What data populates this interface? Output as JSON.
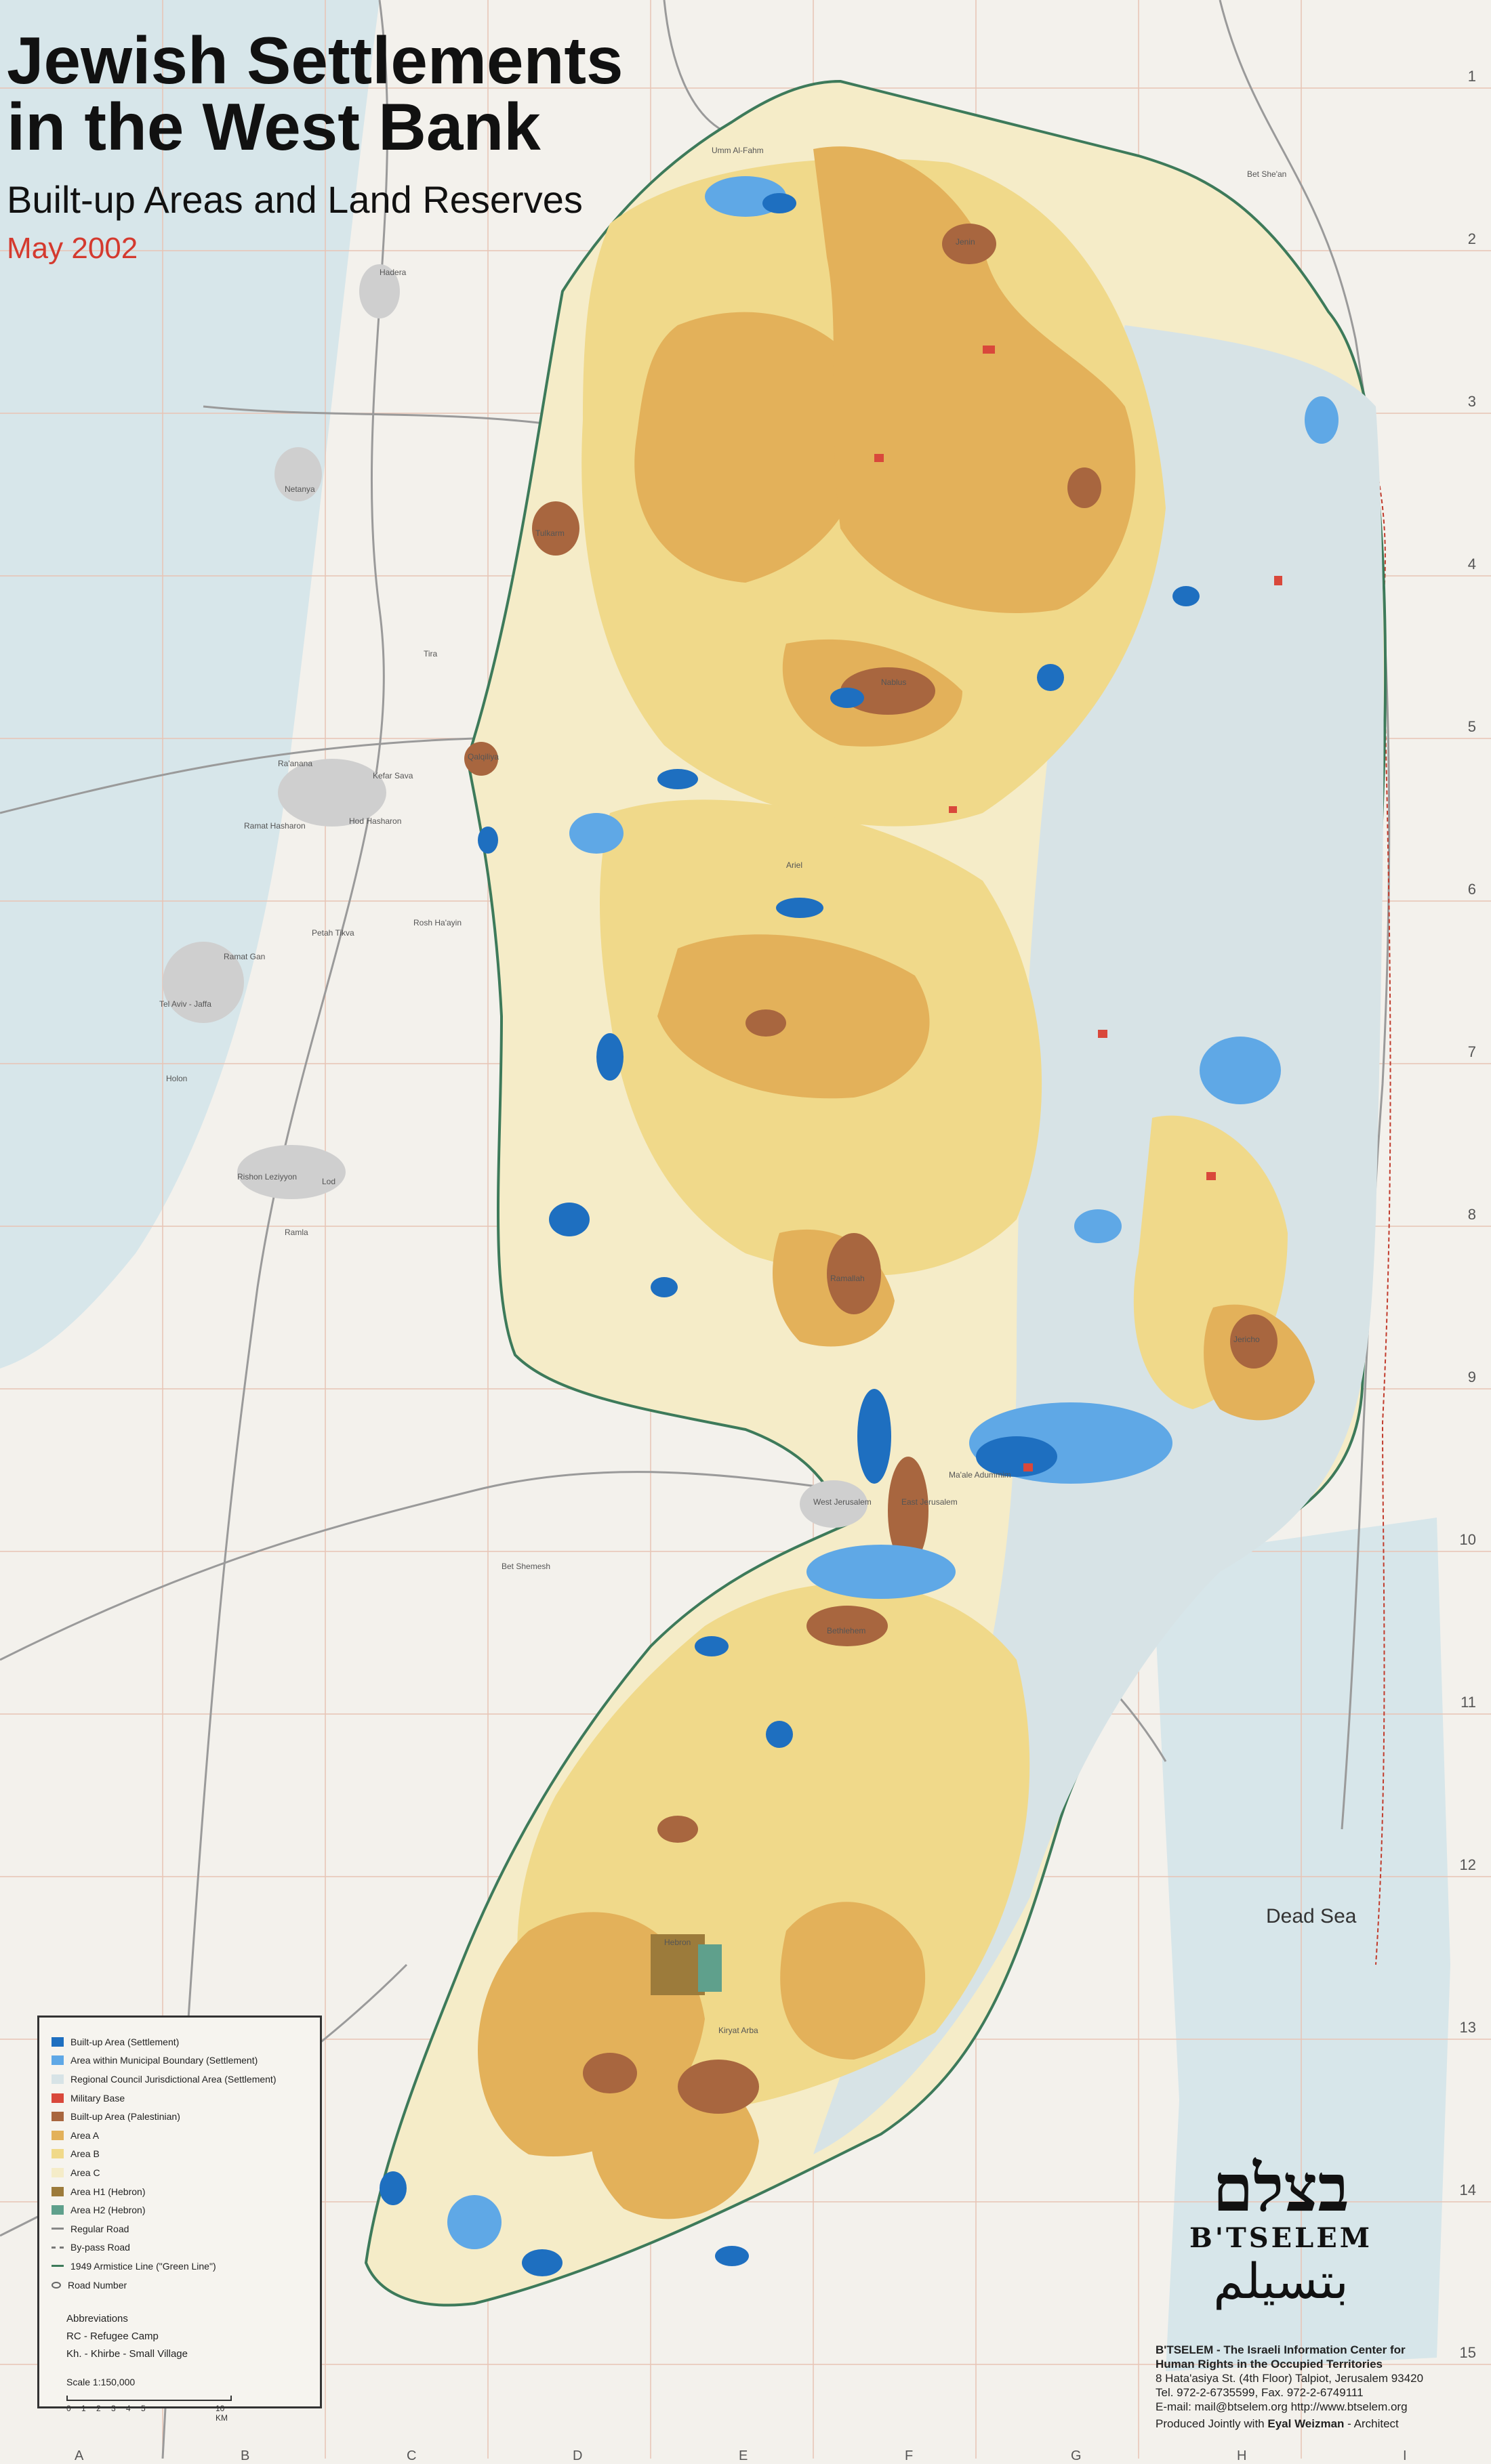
{
  "title_line1": "Jewish Settlements",
  "title_line2": "in the West Bank",
  "subtitle": "Built-up Areas and Land Reserves",
  "date": "May 2002",
  "dead_sea": "Dead Sea",
  "colors": {
    "settlement": "#1e6fc0",
    "municipal": "#5fa8e6",
    "regional": "#d7e3e6",
    "military": "#d9483b",
    "palestinian": "#a8663f",
    "area_a": "#e3b15a",
    "area_b": "#f0d98a",
    "area_c": "#f5ecc8",
    "h1": "#9c7b3b",
    "h2": "#5fa08c",
    "sea": "#d7e6ea"
  },
  "legend": {
    "items": [
      {
        "label": "Built-up Area (Settlement)",
        "kind": "swatch",
        "color": "#1e6fc0"
      },
      {
        "label": "Area within Municipal Boundary (Settlement)",
        "kind": "swatch",
        "color": "#5fa8e6"
      },
      {
        "label": "Regional Council Jurisdictional Area (Settlement)",
        "kind": "swatch",
        "color": "#d7e3e6"
      },
      {
        "label": "Military Base",
        "kind": "swatch",
        "color": "#d9483b"
      },
      {
        "label": "Built-up Area (Palestinian)",
        "kind": "swatch",
        "color": "#a8663f"
      },
      {
        "label": "Area A",
        "kind": "swatch",
        "color": "#e3b15a"
      },
      {
        "label": "Area B",
        "kind": "swatch",
        "color": "#f0d98a"
      },
      {
        "label": "Area C",
        "kind": "swatch",
        "color": "#f5ecc8"
      },
      {
        "label": "Area H1 (Hebron)",
        "kind": "swatch",
        "color": "#9c7b3b"
      },
      {
        "label": "Area H2 (Hebron)",
        "kind": "swatch",
        "color": "#5fa08c"
      },
      {
        "label": "Regular Road",
        "kind": "line",
        "color": "#888888"
      },
      {
        "label": "By-pass Road",
        "kind": "dash",
        "color": "#777777"
      },
      {
        "label": "1949 Armistice Line (\"Green Line\")",
        "kind": "line",
        "color": "#3d7a5a"
      },
      {
        "label": "Road Number",
        "kind": "circle",
        "color": "#666666"
      }
    ],
    "abbr_title": "Abbreviations",
    "abbr_1": "RC - Refugee Camp",
    "abbr_2": "Kh. - Khirbe - Small Village",
    "scale": "Scale 1:150,000",
    "scale_ticks": [
      "0",
      "1",
      "2",
      "3",
      "4",
      "5",
      "10 KM"
    ]
  },
  "logo": {
    "hebrew": "בצלם",
    "name": "B'TSELEM",
    "arabic": "بتسيلم"
  },
  "org": {
    "line1": "B'TSELEM - The Israeli Information Center for",
    "line2": "Human Rights in the Occupied Territories",
    "line3": "8 Hata'asiya St. (4th Floor) Talpiot, Jerusalem 93420",
    "line4": "Tel. 972-2-6735599, Fax. 972-2-6749111",
    "line5": "E-mail: mail@btselem.org    http://www.btselem.org"
  },
  "produced_prefix": "Produced Jointly with",
  "produced_name": "Eyal Weizman",
  "produced_suffix": " - Architect",
  "places": [
    {
      "name": "Jenin",
      "key": "jenin"
    },
    {
      "name": "Nablus",
      "key": "nablus"
    },
    {
      "name": "Qalqiliya",
      "key": "qalqiliya"
    },
    {
      "name": "Tulkarm",
      "key": "tulkarm"
    },
    {
      "name": "Ramallah",
      "key": "ramallah"
    },
    {
      "name": "Jericho",
      "key": "jericho"
    },
    {
      "name": "Bethlehem",
      "key": "bethlehem"
    },
    {
      "name": "Hebron",
      "key": "hebron"
    },
    {
      "name": "East Jerusalem",
      "key": "ejer"
    },
    {
      "name": "West Jerusalem",
      "key": "wjer"
    },
    {
      "name": "Netanya",
      "key": "netanya"
    },
    {
      "name": "Hadera",
      "key": "hadera"
    },
    {
      "name": "Tira",
      "key": "tira"
    },
    {
      "name": "Ra'anana",
      "key": "raanana"
    },
    {
      "name": "Kefar Sava",
      "key": "kfarsava"
    },
    {
      "name": "Hod Hasharon",
      "key": "hod"
    },
    {
      "name": "Ramat Hasharon",
      "key": "ramathash"
    },
    {
      "name": "Petah Tikva",
      "key": "petah"
    },
    {
      "name": "Rosh Ha'ayin",
      "key": "rosh"
    },
    {
      "name": "Ramat Gan",
      "key": "ramatgan"
    },
    {
      "name": "Tel Aviv - Jaffa",
      "key": "telaviv"
    },
    {
      "name": "Holon",
      "key": "holon"
    },
    {
      "name": "Rishon Leziyyon",
      "key": "rishon"
    },
    {
      "name": "Lod",
      "key": "lod"
    },
    {
      "name": "Ramla",
      "key": "ramla"
    },
    {
      "name": "Bet Shemesh",
      "key": "betshemesh"
    },
    {
      "name": "Bet She'an",
      "key": "betshean"
    },
    {
      "name": "Umm Al-Fahm",
      "key": "umm"
    },
    {
      "name": "Ariel",
      "key": "ariel"
    },
    {
      "name": "Ma'ale Adummim",
      "key": "maale"
    },
    {
      "name": "Kiryat Arba",
      "key": "kiryat"
    }
  ],
  "grid_numbers": [
    "1",
    "2",
    "3",
    "4",
    "5",
    "6",
    "7",
    "8",
    "9",
    "10",
    "11",
    "12",
    "13",
    "14",
    "15"
  ],
  "grid_letters": [
    "A",
    "B",
    "C",
    "D",
    "E",
    "F",
    "G",
    "H",
    "I"
  ]
}
